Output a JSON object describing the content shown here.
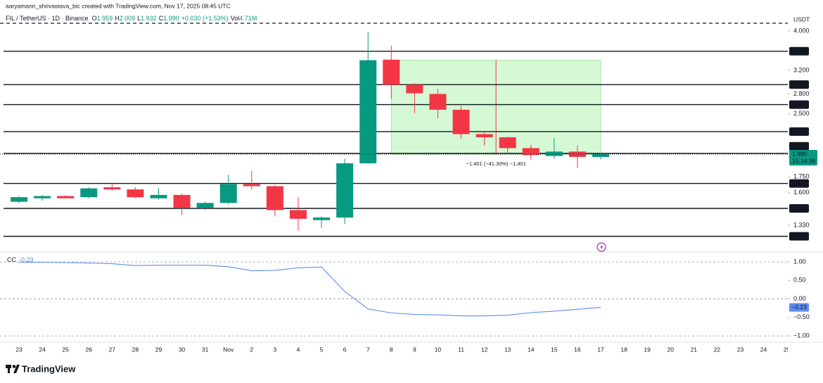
{
  "chart_data": {
    "type": "candlestick",
    "credit": "aaryamann_shrivastava_bic created with TradingView.com, Nov 17, 2025 08:45 UTC",
    "symbol": "FIL / TetherUS · 1D · Binance",
    "ohlc": [
      {
        "key": "O",
        "value": "1.959"
      },
      {
        "key": "H",
        "value": "2.009"
      },
      {
        "key": "L",
        "value": "1.932"
      },
      {
        "key": "C",
        "value": "1.990"
      }
    ],
    "change": "+0.030 (+1.53%)",
    "volume_key": "Vol",
    "volume": "4.71M",
    "currency": "USDT",
    "brand": "TradingView",
    "up_color": "#089981",
    "down_color": "#f23645",
    "log_scale": true,
    "grid": false,
    "categories": [
      "23",
      "24",
      "25",
      "26",
      "27",
      "28",
      "29",
      "30",
      "31",
      "Nov",
      "2",
      "3",
      "4",
      "5",
      "6",
      "7",
      "8",
      "9",
      "10",
      "11",
      "12",
      "13",
      "14",
      "15",
      "16",
      "17",
      "18",
      "19",
      "20",
      "21",
      "22",
      "23",
      "24",
      "25"
    ],
    "open": [
      1.52,
      1.55,
      1.57,
      1.56,
      1.65,
      1.63,
      1.55,
      1.58,
      1.47,
      1.51,
      1.68,
      1.66,
      1.45,
      1.37,
      1.39,
      1.89,
      3.4,
      2.95,
      2.8,
      2.56,
      2.23,
      2.19,
      2.06,
      1.97,
      2.02,
      1.959,
      null,
      null,
      null,
      null,
      null,
      null,
      null,
      null
    ],
    "high": [
      1.57,
      1.58,
      1.58,
      1.65,
      1.68,
      1.65,
      1.64,
      1.59,
      1.52,
      1.77,
      1.81,
      1.67,
      1.56,
      1.4,
      1.94,
      3.98,
      3.68,
      2.98,
      2.88,
      2.62,
      2.26,
      2.2,
      2.1,
      2.18,
      2.09,
      2.009,
      null,
      null,
      null,
      null,
      null,
      null,
      null,
      null
    ],
    "low": [
      1.51,
      1.53,
      1.55,
      1.55,
      1.62,
      1.55,
      1.54,
      1.41,
      1.45,
      1.5,
      1.63,
      1.4,
      1.29,
      1.31,
      1.34,
      1.88,
      2.72,
      2.51,
      2.44,
      2.17,
      2.09,
      1.99,
      1.93,
      1.94,
      1.84,
      1.932,
      null,
      null,
      null,
      null,
      null,
      null,
      null,
      null
    ],
    "close": [
      1.56,
      1.57,
      1.55,
      1.64,
      1.63,
      1.56,
      1.58,
      1.47,
      1.51,
      1.68,
      1.66,
      1.45,
      1.38,
      1.39,
      1.89,
      3.39,
      2.95,
      2.81,
      2.56,
      2.23,
      2.19,
      2.06,
      1.98,
      2.02,
      1.96,
      1.99,
      null,
      null,
      null,
      null,
      null,
      null,
      null,
      null
    ],
    "ylim": [
      1.157,
      4.23
    ],
    "yticks": [
      {
        "value": 4,
        "label": "4.000"
      },
      {
        "value": 3.2,
        "label": "3.200"
      },
      {
        "value": 2.8,
        "label": "2.800"
      },
      {
        "value": 2.5,
        "label": "2.500"
      },
      {
        "value": 1.75,
        "label": "1.750"
      },
      {
        "value": 1.6,
        "label": "1.600"
      },
      {
        "value": 1.33,
        "label": "1.330"
      }
    ],
    "levels": [
      {
        "value": 3.566,
        "label": "3.566"
      },
      {
        "value": 2.952,
        "label": "2.952"
      },
      {
        "value": 2.636,
        "label": "2.636"
      },
      {
        "value": 2.262,
        "label": "2.262"
      },
      {
        "value": 2.0,
        "label": "2.000"
      },
      {
        "value": 1.686,
        "label": "1.686"
      },
      {
        "value": 1.464,
        "label": "1.464"
      },
      {
        "value": 1.25,
        "label": "1.250"
      }
    ],
    "current_price": {
      "value": 1.99,
      "label": "1.990",
      "countdown": "15:14:39"
    },
    "range": {
      "from": 3.391,
      "to": 1.99,
      "start": "8",
      "end": "17",
      "label": "−1.401 (−41.30%) −1,401"
    },
    "indicator": {
      "name": "CC",
      "legend_value": "-0.23",
      "value_label": "−0.23",
      "color": "#5b8def",
      "values": [
        0.99,
        0.99,
        0.98,
        0.97,
        0.95,
        0.9,
        0.91,
        0.91,
        0.91,
        0.87,
        0.76,
        0.77,
        0.84,
        0.86,
        0.2,
        -0.27,
        -0.38,
        -0.42,
        -0.43,
        -0.46,
        -0.46,
        -0.44,
        -0.37,
        -0.33,
        -0.28,
        -0.23,
        null,
        null,
        null,
        null,
        null,
        null,
        null,
        null
      ],
      "ylim": [
        -1.15,
        1.19
      ],
      "yticks": [
        {
          "value": 1,
          "label": "1.00"
        },
        {
          "value": 0.5,
          "label": "0.50"
        },
        {
          "value": 0,
          "label": "0.00"
        },
        {
          "value": -0.5,
          "label": "−0.50"
        },
        {
          "value": -1,
          "label": "−1.00"
        }
      ],
      "hlines": [
        1,
        0,
        -1
      ]
    }
  }
}
